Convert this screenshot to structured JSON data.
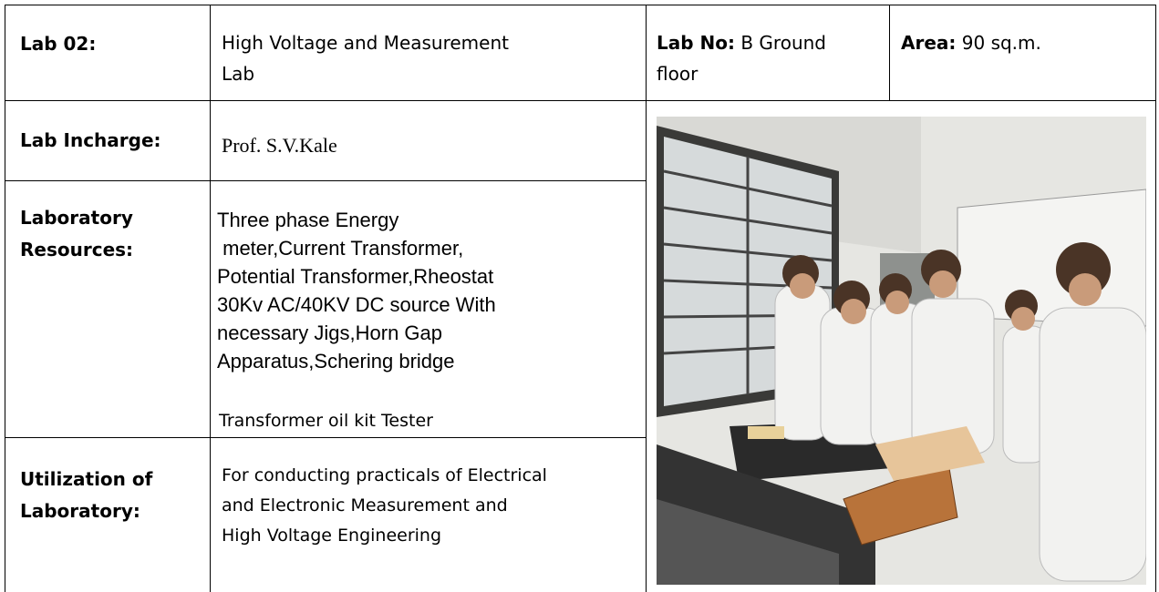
{
  "table": {
    "row1": {
      "lab": "Lab 02:",
      "name_lines": [
        "High Voltage and Measurement",
        "Lab"
      ],
      "lab_no": {
        "label": "Lab No:",
        "value_lines": [
          " B Ground",
          "floor"
        ]
      },
      "area": {
        "label": "Area:",
        "value": " 90 sq.m."
      }
    },
    "incharge": {
      "label": "Lab Incharge:",
      "value": "Prof. S.V.Kale"
    },
    "resources": {
      "label_lines": [
        "Laboratory",
        "Resources:"
      ],
      "value_lines": [
        "Three phase Energy",
        " meter,Current Transformer,",
        "Potential Transformer,Rheostat",
        "30Kv AC/40KV DC source With",
        "necessary Jigs,Horn Gap",
        "Apparatus,Schering bridge"
      ],
      "last_line": "Transformer oil kit Tester"
    },
    "utilization": {
      "label_lines": [
        "Utilization of",
        "Laboratory:"
      ],
      "value_lines": [
        "For conducting practicals of Electrical",
        "and Electronic Measurement and",
        "High Voltage Engineering"
      ]
    }
  }
}
